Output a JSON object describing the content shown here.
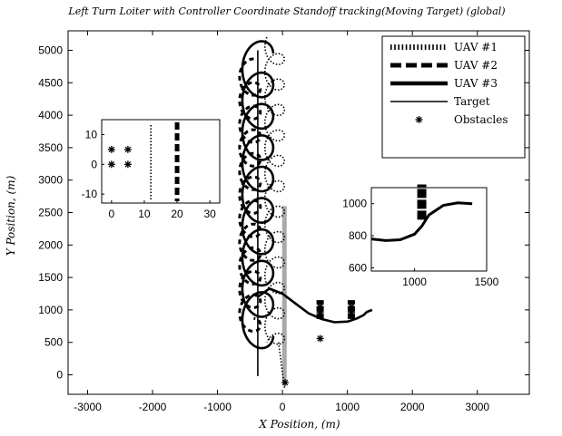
{
  "chart_data": {
    "type": "line",
    "title": "Left Turn Loiter with Controller Coordinate Standoff tracking(Moving Target) (global)",
    "xlabel": "X Position, (m)",
    "ylabel": "Y Position, (m)",
    "xlim": [
      -3300,
      3800
    ],
    "ylim": [
      -300,
      5300
    ],
    "xticks": [
      "-3000",
      "-2000",
      "-1000",
      "0",
      "1000",
      "2000",
      "3000"
    ],
    "xtick_values": [
      -3000,
      -2000,
      -1000,
      0,
      1000,
      2000,
      3000
    ],
    "yticks": [
      "0",
      "500",
      "1000",
      "1500",
      "2000",
      "2500",
      "3000",
      "3500",
      "4000",
      "4500",
      "5000"
    ],
    "ytick_values": [
      0,
      500,
      1000,
      1500,
      2000,
      2500,
      3000,
      3500,
      4000,
      4500,
      5000
    ],
    "grid": false,
    "legend_position": "top-right",
    "legend": [
      {
        "label": "UAV #1",
        "style": "dotted"
      },
      {
        "label": "UAV #2",
        "style": "dashed"
      },
      {
        "label": "UAV #3",
        "style": "thick"
      },
      {
        "label": "Target",
        "style": "solid"
      },
      {
        "label": "Obstacles",
        "style": "marker"
      }
    ],
    "series": [
      {
        "name": "Target",
        "x": [
          -380,
          -380
        ],
        "y": [
          -20,
          5000
        ]
      },
      {
        "name": "UAV #3",
        "loiter_center_x": -380,
        "loiter_radius": 250,
        "y_from": 600,
        "y_to": 4950,
        "exit_to": {
          "x": [
            -380,
            -200,
            0,
            200,
            400,
            600,
            800,
            1000,
            1150,
            1250,
            1300,
            1380
          ],
          "y": [
            1200,
            1330,
            1250,
            1100,
            950,
            860,
            810,
            820,
            870,
            920,
            970,
            1000
          ]
        }
      },
      {
        "name": "UAV #1",
        "x": [
          -80,
          -60,
          -40,
          -20,
          0,
          20,
          40
        ],
        "y": [
          5250,
          4200,
          3100,
          2000,
          1000,
          300,
          -200
        ]
      },
      {
        "name": "UAV #2",
        "x": [
          30,
          30
        ],
        "y": [
          -100,
          2600
        ]
      }
    ],
    "obstacles": [
      {
        "x": 580,
        "y": 1050
      },
      {
        "x": 580,
        "y": 960
      },
      {
        "x": 1060,
        "y": 1050
      },
      {
        "x": 1060,
        "y": 960
      },
      {
        "x": 580,
        "y": 560
      },
      {
        "x": 40,
        "y": -120
      }
    ],
    "insets": [
      {
        "xticks": [
          "0",
          "10",
          "20",
          "30"
        ],
        "xtick_values": [
          0,
          10,
          20,
          30
        ],
        "yticks": [
          "10",
          "0",
          "-10"
        ],
        "ytick_values": [
          10,
          0,
          -10
        ],
        "xlim": [
          -3,
          33
        ],
        "ylim": [
          -13,
          15
        ],
        "obstacles": [
          {
            "x": 0,
            "y": 5
          },
          {
            "x": 5,
            "y": 5
          },
          {
            "x": 0,
            "y": 0
          },
          {
            "x": 5,
            "y": 0
          }
        ],
        "uav1_x": 12,
        "uav2_x": 20
      },
      {
        "xticks": [
          "1000",
          "1500"
        ],
        "xtick_values": [
          1000,
          1500
        ],
        "yticks": [
          "1000",
          "800",
          "600"
        ],
        "ytick_values": [
          1000,
          800,
          600
        ],
        "xlim": [
          700,
          1500
        ],
        "ylim": [
          580,
          1100
        ],
        "uav3": {
          "x": [
            700,
            800,
            900,
            1000,
            1050,
            1100,
            1200,
            1300,
            1400
          ],
          "y": [
            780,
            770,
            775,
            810,
            860,
            930,
            990,
            1005,
            1000
          ]
        },
        "uav2_block": {
          "x": 1050,
          "y_from": 900,
          "y_to": 1120
        }
      }
    ]
  }
}
